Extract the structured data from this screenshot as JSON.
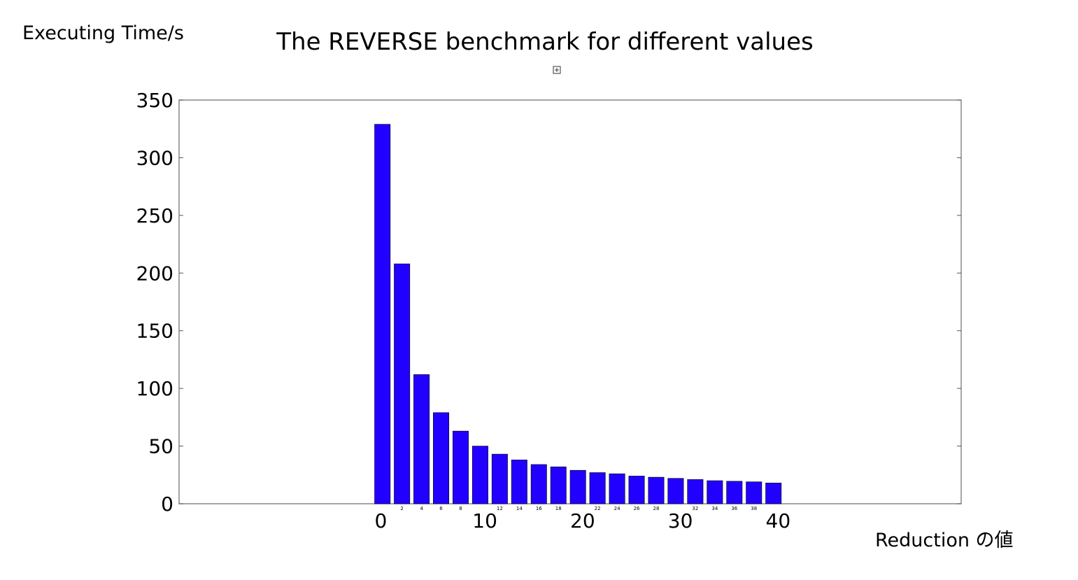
{
  "chart_data": {
    "type": "bar",
    "title": "The REVERSE benchmark for different values",
    "ylabel": "Executing Time/s",
    "xlabel": "Reduction の値",
    "x": [
      0,
      2,
      4,
      6,
      8,
      10,
      12,
      14,
      16,
      18,
      20,
      22,
      24,
      26,
      28,
      30,
      32,
      34,
      36,
      38,
      40
    ],
    "values": [
      329,
      208,
      112,
      79,
      63,
      50,
      43,
      38,
      34,
      32,
      29,
      27,
      26,
      24,
      23,
      22,
      21,
      20,
      19.5,
      19,
      18
    ],
    "xlim": [
      -20,
      60
    ],
    "ylim": [
      0,
      350
    ],
    "yticks": [
      0,
      50,
      100,
      150,
      200,
      250,
      300,
      350
    ],
    "xticks_major": [
      0,
      10,
      20,
      30,
      40
    ],
    "xticks_minor": [
      2,
      4,
      6,
      8,
      12,
      14,
      16,
      18,
      22,
      24,
      26,
      28,
      32,
      34,
      36,
      38
    ],
    "grid": false,
    "bar_color": "#2200ff",
    "bar_edge_color": "#000000"
  }
}
